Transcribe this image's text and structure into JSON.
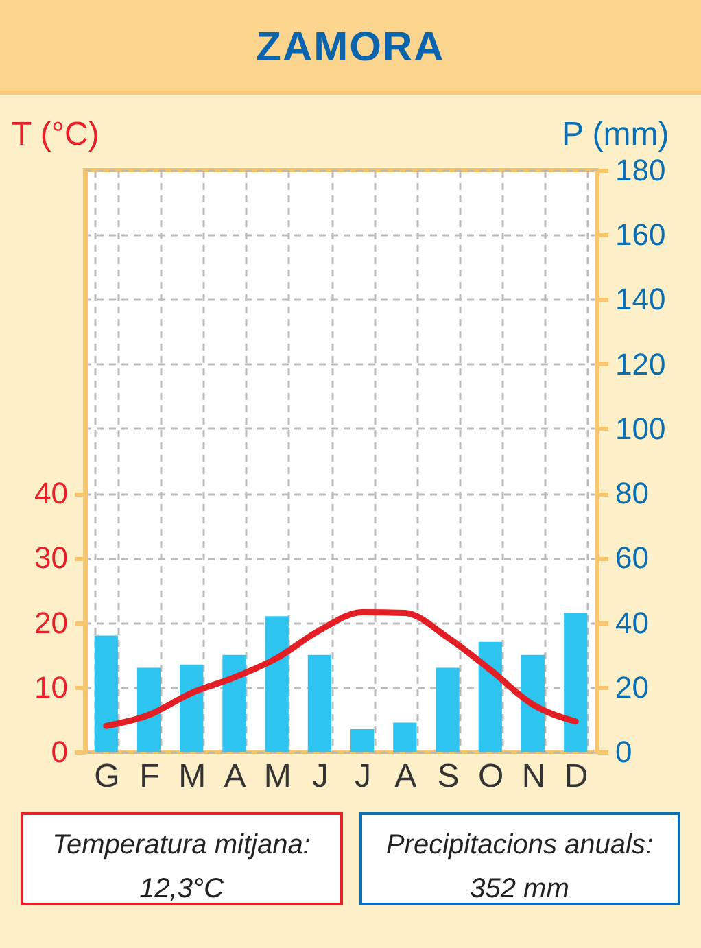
{
  "chart_data": {
    "type": "bar",
    "title": "ZAMORA",
    "categories": [
      "G",
      "F",
      "M",
      "A",
      "M",
      "J",
      "J",
      "A",
      "S",
      "O",
      "N",
      "D"
    ],
    "series": [
      {
        "axis": "y2",
        "color": "#2ec4f0",
        "values": [
          36,
          26,
          27,
          30,
          42,
          30,
          7,
          9,
          26,
          34,
          30,
          43
        ]
      },
      {
        "type": "line",
        "color": "#e31e24",
        "values": [
          4,
          5.7,
          9.1,
          11.5,
          14.5,
          18.8,
          21.6,
          21.5,
          17.7,
          12.7,
          7.3,
          4.7
        ]
      }
    ],
    "ylabel": "T (°C)",
    "y2label": "P (mm)",
    "ylim": [
      0,
      90
    ],
    "yticks": [
      0,
      10,
      20,
      30,
      40
    ],
    "y2lim": [
      0,
      180
    ],
    "y2ticks": [
      0,
      20,
      40,
      60,
      80,
      100,
      120,
      140,
      160,
      180
    ],
    "grid": true,
    "annotations": [
      "Temperatura mitjana: 12,3°C",
      "Precipitacions anuals: 352 mm"
    ]
  }
}
